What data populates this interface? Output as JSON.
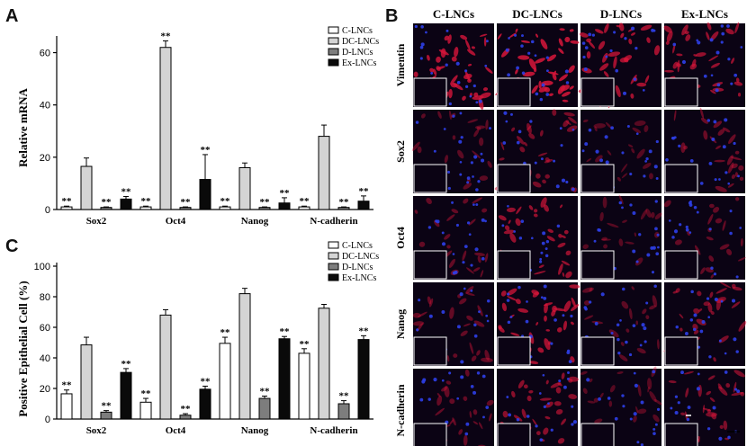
{
  "panel_letters": {
    "a": "A",
    "b": "B",
    "c": "C"
  },
  "micrograph": {
    "columns": [
      "C-LNCs",
      "DC-LNCs",
      "D-LNCs",
      "Ex-LNCs"
    ],
    "rows": [
      "Vimentin",
      "Sox2",
      "Oct4",
      "Nanog",
      "N-cadherin"
    ],
    "colors": {
      "background": "#0b0314",
      "red": "#d8163a",
      "blue": "#2d3fe8",
      "separator": "#ffffff"
    }
  },
  "chart_data": [
    {
      "type": "bar",
      "panel": "A",
      "title": "",
      "xlabel": "",
      "ylabel": "Relative mRNA",
      "ylim": [
        0,
        65
      ],
      "yticks": [
        0,
        20,
        40,
        60
      ],
      "categories": [
        "Sox2",
        "Oct4",
        "Nanog",
        "N-cadherin"
      ],
      "series": [
        {
          "name": "C-LNCs",
          "color": "#ffffff",
          "values": [
            1,
            1,
            1,
            1
          ],
          "errors": [
            0.3,
            0.3,
            0.3,
            0.3
          ],
          "sig": [
            "**",
            "**",
            "**",
            "**"
          ]
        },
        {
          "name": "DC-LNCs",
          "color": "#d4d4d4",
          "values": [
            16.5,
            62,
            16,
            28
          ],
          "errors": [
            3.2,
            2.5,
            1.8,
            4.3
          ],
          "sig": [
            "",
            "**",
            "",
            ""
          ]
        },
        {
          "name": "D-LNCs",
          "color": "#7d7d7d",
          "values": [
            0.8,
            0.8,
            0.8,
            0.8
          ],
          "errors": [
            0.2,
            0.2,
            0.2,
            0.2
          ],
          "sig": [
            "**",
            "**",
            "**",
            "**"
          ]
        },
        {
          "name": "Ex-LNCs",
          "color": "#0a0a0a",
          "values": [
            4,
            11.5,
            2.5,
            3.2
          ],
          "errors": [
            1,
            9.5,
            2,
            2
          ],
          "sig": [
            "**",
            "**",
            "**",
            "**"
          ]
        }
      ],
      "legend": "top-right",
      "grid": false
    },
    {
      "type": "bar",
      "panel": "C",
      "title": "",
      "xlabel": "",
      "ylabel": "Positive Epithelial Cell (%)",
      "ylim": [
        0,
        100
      ],
      "yticks": [
        0,
        20,
        40,
        60,
        80,
        100
      ],
      "categories": [
        "Sox2",
        "Oct4",
        "Nanog",
        "N-cadherin"
      ],
      "series": [
        {
          "name": "C-LNCs",
          "color": "#ffffff",
          "values": [
            16.5,
            11,
            49.5,
            43
          ],
          "errors": [
            2.5,
            2.5,
            4,
            3
          ],
          "sig": [
            "**",
            "**",
            "**",
            "**"
          ]
        },
        {
          "name": "DC-LNCs",
          "color": "#d4d4d4",
          "values": [
            48.5,
            68,
            82,
            72.5
          ],
          "errors": [
            5,
            3.5,
            3.5,
            2.5
          ],
          "sig": [
            "",
            "",
            "",
            ""
          ]
        },
        {
          "name": "D-LNCs",
          "color": "#7d7d7d",
          "values": [
            4.5,
            2.5,
            13.5,
            10
          ],
          "errors": [
            1,
            1,
            1.5,
            2
          ],
          "sig": [
            "**",
            "**",
            "**",
            "**"
          ]
        },
        {
          "name": "Ex-LNCs",
          "color": "#0a0a0a",
          "values": [
            30.5,
            19.5,
            52.5,
            52
          ],
          "errors": [
            2.5,
            2,
            1.5,
            2.5
          ],
          "sig": [
            "**",
            "**",
            "**",
            "**"
          ]
        }
      ],
      "legend": "top-right",
      "grid": false
    }
  ]
}
